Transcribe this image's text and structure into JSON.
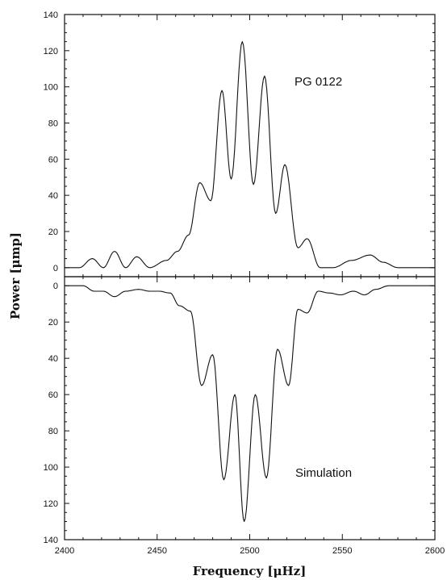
{
  "chart_data": {
    "type": "line",
    "xlabel": "Frequency [μHz]",
    "ylabel": "Power [μmp]",
    "xlim": [
      2400,
      2600
    ],
    "xticks": [
      "2400",
      "2450",
      "2500",
      "2550",
      "2600"
    ],
    "panels": [
      {
        "annotation": "PG 0122",
        "ylim": [
          -5,
          140
        ],
        "inverted": false,
        "yticks": [
          "0",
          "20",
          "40",
          "60",
          "80",
          "100",
          "120",
          "140"
        ],
        "series": [
          {
            "x": [
              2400,
              2408,
              2415,
              2421,
              2427,
              2433,
              2439,
              2446,
              2455,
              2461,
              2467,
              2473,
              2479,
              2485,
              2490,
              2496,
              2502,
              2508,
              2514,
              2519,
              2526,
              2531,
              2538,
              2545,
              2555,
              2565,
              2572,
              2580,
              2590,
              2600
            ],
            "y": [
              0,
              0,
              5,
              0,
              9,
              0,
              6,
              0,
              4,
              9,
              18,
              47,
              37,
              98,
              49,
              125,
              46,
              106,
              30,
              57,
              11,
              16,
              0,
              0,
              4,
              7,
              3,
              0,
              0,
              0
            ]
          }
        ]
      },
      {
        "annotation": "Simulation",
        "ylim": [
          -5,
          140
        ],
        "inverted": true,
        "yticks": [
          "0",
          "20",
          "40",
          "60",
          "80",
          "100",
          "120",
          "140"
        ],
        "series": [
          {
            "x": [
              2400,
              2410,
              2416,
              2421,
              2427,
              2433,
              2440,
              2446,
              2451,
              2457,
              2462,
              2468,
              2474,
              2480,
              2486,
              2492,
              2497,
              2503,
              2509,
              2515,
              2521,
              2526,
              2531,
              2537,
              2543,
              2549,
              2556,
              2562,
              2568,
              2575,
              2600
            ],
            "y": [
              0,
              0,
              3,
              3,
              6,
              3,
              2,
              3,
              3,
              4,
              11,
              14,
              55,
              38,
              107,
              60,
              130,
              60,
              106,
              35,
              55,
              13,
              15,
              3,
              4,
              5,
              3,
              5,
              2,
              0,
              0
            ]
          }
        ]
      }
    ]
  }
}
